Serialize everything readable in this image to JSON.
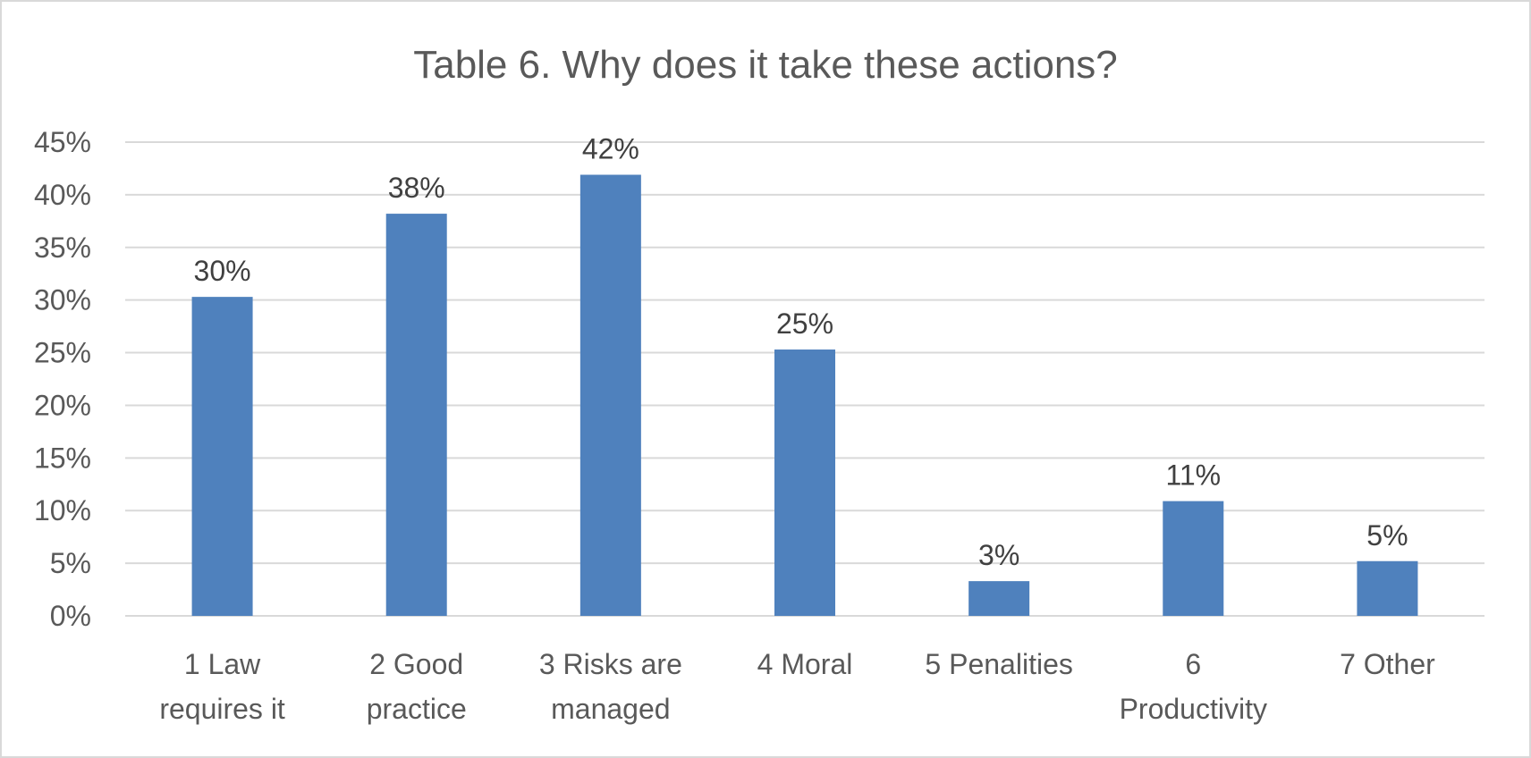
{
  "chart_data": {
    "type": "bar",
    "title": "Table 6. Why does it take these actions?",
    "categories": [
      [
        "1 Law",
        "requires it"
      ],
      [
        "2 Good",
        "practice"
      ],
      [
        "3 Risks are",
        "managed"
      ],
      [
        "4 Moral"
      ],
      [
        "5 Penalities"
      ],
      [
        "6",
        "Productivity"
      ],
      [
        "7 Other"
      ]
    ],
    "values": [
      30.3,
      38.2,
      41.9,
      25.3,
      3.3,
      10.9,
      5.2
    ],
    "data_labels": [
      "30%",
      "38%",
      "42%",
      "25%",
      "3%",
      "11%",
      "5%"
    ],
    "ylim": [
      0,
      45
    ],
    "yticks": [
      0,
      5,
      10,
      15,
      20,
      25,
      30,
      35,
      40,
      45
    ],
    "ytick_labels": [
      "0%",
      "5%",
      "10%",
      "15%",
      "20%",
      "25%",
      "30%",
      "35%",
      "40%",
      "45%"
    ],
    "grid": true,
    "legend": "none",
    "bar_color": "#4f81bd",
    "grid_color": "#d9d9d9"
  }
}
